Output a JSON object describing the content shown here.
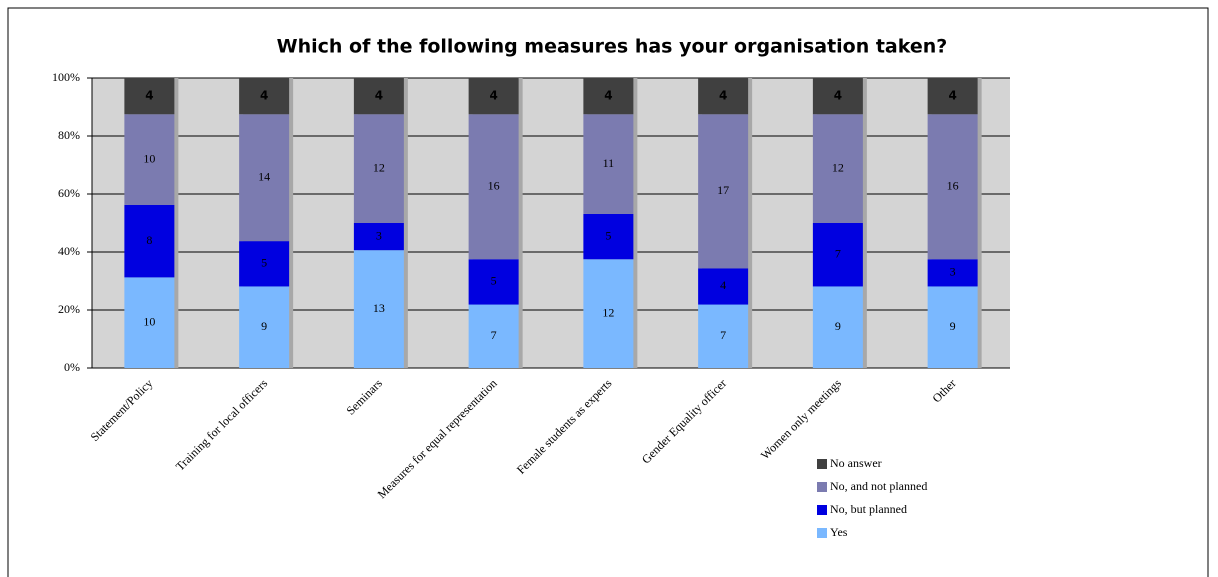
{
  "chart_data": {
    "type": "bar",
    "stacking": "percent",
    "title": "Which of the following measures has your organisation taken?",
    "categories": [
      "Statement/Policy",
      "Training for local officers",
      "Seminars",
      "Measures for equal representation",
      "Female students as experts",
      "Gender Equality officer",
      "Women only meetings",
      "Other"
    ],
    "series": [
      {
        "name": "Yes",
        "color": "#7ab8ff",
        "values": [
          10,
          9,
          13,
          7,
          12,
          7,
          9,
          9
        ]
      },
      {
        "name": "No, but planned",
        "color": "#0000e0",
        "values": [
          8,
          5,
          3,
          5,
          5,
          4,
          7,
          3
        ]
      },
      {
        "name": "No, and not planned",
        "color": "#7b7bb0",
        "values": [
          10,
          14,
          12,
          16,
          11,
          17,
          12,
          16
        ]
      },
      {
        "name": "No answer",
        "color": "#404040",
        "values": [
          4,
          4,
          4,
          4,
          4,
          4,
          4,
          4
        ]
      }
    ],
    "ylim": [
      0,
      100
    ],
    "yticks": [
      {
        "value": 0,
        "label": "0%"
      },
      {
        "value": 20,
        "label": "20%"
      },
      {
        "value": 40,
        "label": "40%"
      },
      {
        "value": 60,
        "label": "60%"
      },
      {
        "value": 80,
        "label": "80%"
      },
      {
        "value": 100,
        "label": "100%"
      }
    ],
    "grid": true,
    "legend": "right"
  }
}
